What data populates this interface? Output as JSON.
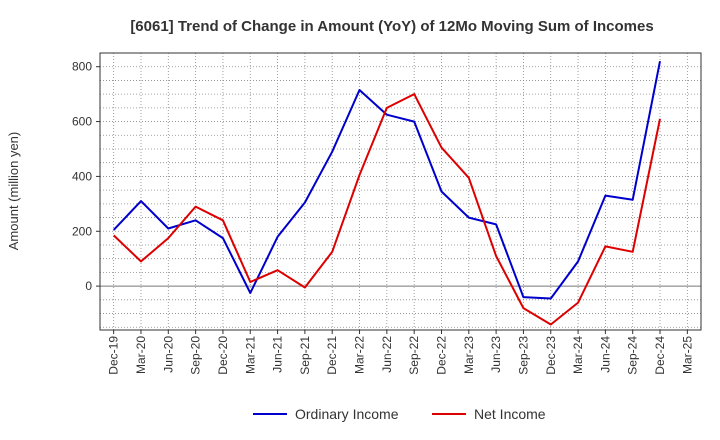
{
  "chart_data": {
    "type": "line",
    "title": "[6061]  Trend of Change in Amount (YoY) of 12Mo Moving Sum of Incomes",
    "ylabel": "Amount (million yen)",
    "xlabel": "",
    "ylim": [
      -160,
      850
    ],
    "yticks": [
      0,
      200,
      400,
      600,
      800
    ],
    "grid": true,
    "legend_position": "bottom",
    "categories": [
      "Dec-19",
      "Mar-20",
      "Jun-20",
      "Sep-20",
      "Dec-20",
      "Mar-21",
      "Jun-21",
      "Sep-21",
      "Dec-21",
      "Mar-22",
      "Jun-22",
      "Sep-22",
      "Dec-22",
      "Mar-23",
      "Jun-23",
      "Sep-23",
      "Dec-23",
      "Mar-24",
      "Jun-24",
      "Sep-24",
      "Dec-24",
      "Mar-25"
    ],
    "series": [
      {
        "name": "Ordinary Income",
        "color": "#0000cc",
        "values": [
          205,
          310,
          210,
          240,
          175,
          -25,
          180,
          305,
          490,
          715,
          625,
          600,
          345,
          250,
          225,
          -40,
          -45,
          90,
          330,
          315,
          820,
          null
        ]
      },
      {
        "name": "Net Income",
        "color": "#dd0000",
        "values": [
          185,
          90,
          175,
          290,
          240,
          15,
          58,
          -5,
          125,
          405,
          650,
          700,
          505,
          395,
          110,
          -80,
          -140,
          -60,
          145,
          125,
          610,
          null
        ]
      }
    ]
  }
}
